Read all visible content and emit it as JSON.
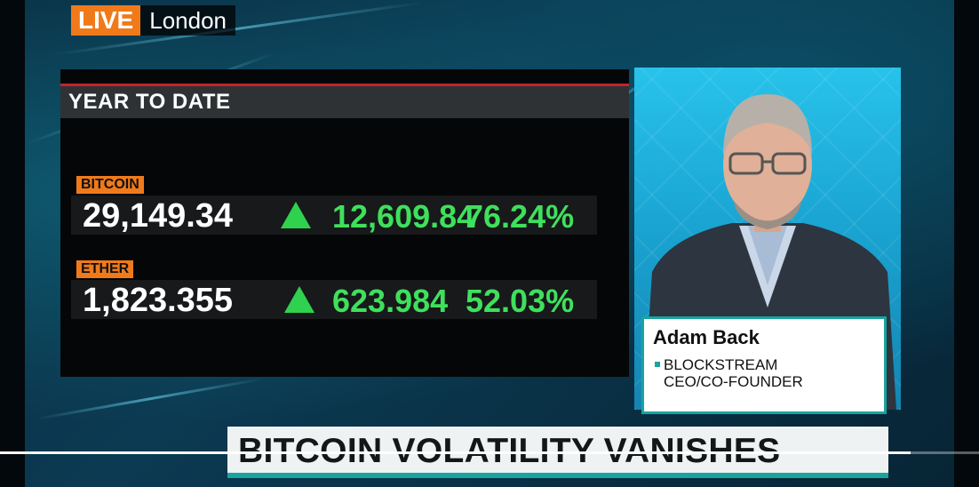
{
  "live_bug": {
    "tag": "LIVE",
    "city": "London"
  },
  "panel": {
    "title": "YEAR TO DATE",
    "assets": [
      {
        "label": "BITCOIN",
        "value": "29,149.34",
        "direction": "up-arrow-icon",
        "net_change": "12,609.84",
        "pct_change": "76.24%"
      },
      {
        "label": "ETHER",
        "value": "1,823.355",
        "direction": "up-arrow-icon",
        "net_change": "623.984",
        "pct_change": "52.03%"
      }
    ]
  },
  "guest": {
    "name": "Adam Back",
    "role": "BLOCKSTREAM\nCEO/CO-FOUNDER"
  },
  "headline": "BITCOIN VOLATILITY VANISHES",
  "player": {
    "progress_fraction": 0.93
  },
  "colors": {
    "live": "#f07a1a",
    "up": "#3fe05c",
    "accent": "#19a4a0",
    "rule": "#c4232b"
  }
}
